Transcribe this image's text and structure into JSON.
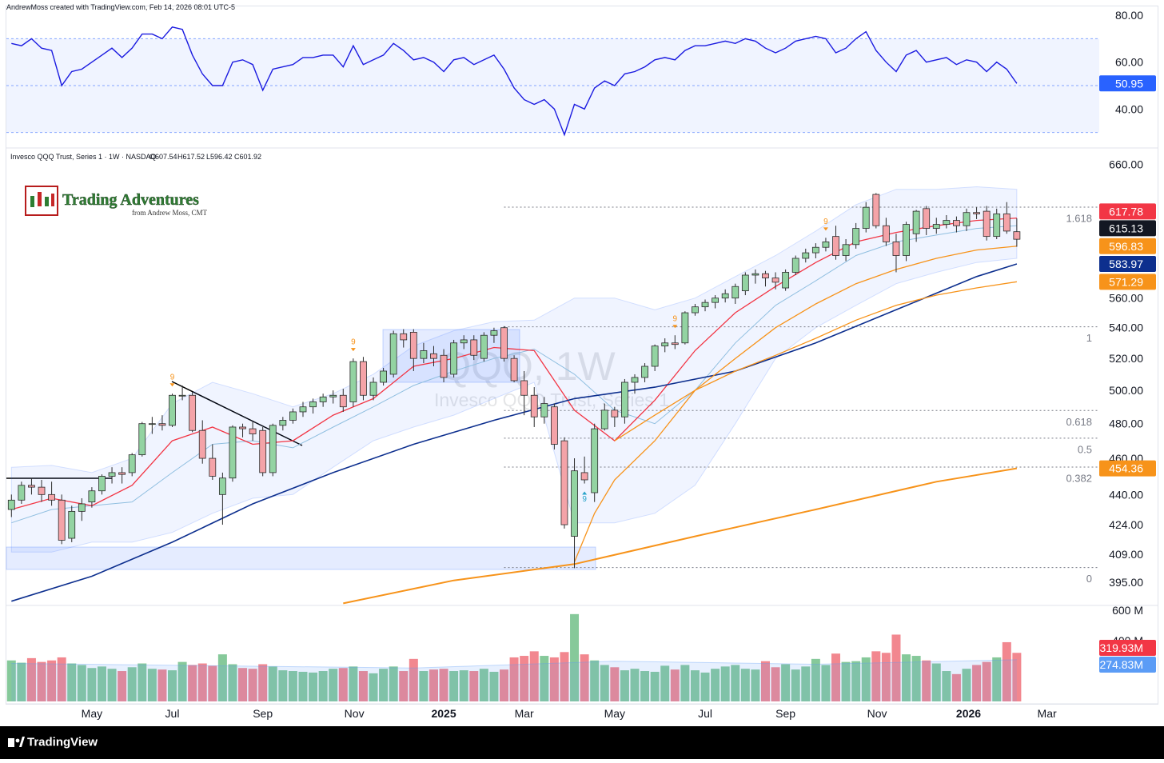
{
  "header": {
    "credit": "AndrewMoss created with TradingView.com, Feb 14, 2026 08:01 UTC-5"
  },
  "logo": {
    "title": "Trading Adventures",
    "subtitle": "from Andrew Moss, CMT"
  },
  "footer": {
    "brand": "TradingView"
  },
  "chart_data": [
    {
      "type": "line",
      "color": "#1a1ae0",
      "xlim": [
        -0.5,
        108.2
      ],
      "ylim": [
        25.1,
        83.8
      ],
      "yticks": [
        {
          "value": 40,
          "label": "40.00"
        },
        {
          "value": 60,
          "label": "60.00"
        },
        {
          "value": 80,
          "label": "80.00"
        }
      ],
      "band_levels": [
        30,
        50,
        70
      ],
      "band_color": "#2962ff",
      "label_color": "#2962ff",
      "values": [
        68,
        67,
        70,
        66,
        65,
        50,
        56,
        57,
        60,
        63,
        66,
        62,
        66,
        72,
        72,
        70,
        75,
        74,
        63,
        55,
        50,
        50,
        60,
        61,
        59,
        48,
        57,
        58,
        59,
        62,
        62,
        63,
        63,
        58,
        67,
        59,
        61,
        63,
        68,
        65,
        61,
        62,
        60,
        56,
        61,
        62,
        59,
        61,
        63,
        57,
        49,
        44,
        42,
        44,
        40,
        29,
        42,
        40,
        49,
        52,
        50,
        55,
        56,
        58,
        61,
        62,
        61,
        65,
        67,
        67,
        68,
        69,
        68,
        70,
        69,
        66,
        64,
        66,
        69,
        70,
        71,
        70,
        64,
        66,
        70,
        73,
        65,
        60,
        56,
        63,
        65,
        60,
        61,
        62,
        59,
        61,
        60,
        56,
        60,
        57,
        50.95
      ]
    },
    {
      "type": "candlestick",
      "log": true,
      "xlim": [
        -0.5,
        108.2
      ],
      "ylim": [
        384,
        670
      ],
      "legend_title": "Invesco QQQ Trust, Series 1 · 1W · NASDAQ",
      "ohlc_legend": [
        "O607.54",
        "H617.52",
        "L596.42",
        "C601.92"
      ],
      "watermark": {
        "symbol": "QQQ, 1W",
        "description": "Invesco QQQ Trust, Series 1"
      },
      "yticks": [
        {
          "value": 395,
          "label": "395.00"
        },
        {
          "value": 409,
          "label": "409.00"
        },
        {
          "value": 424,
          "label": "424.00"
        },
        {
          "value": 440,
          "label": "440.00"
        },
        {
          "value": 460,
          "label": "460.00"
        },
        {
          "value": 480,
          "label": "480.00"
        },
        {
          "value": 500,
          "label": "500.00"
        },
        {
          "value": 520,
          "label": "520.00"
        },
        {
          "value": 540,
          "label": "540.00"
        },
        {
          "value": 560,
          "label": "560.00"
        },
        {
          "value": 660,
          "label": "660.00"
        }
      ],
      "up_color": "#93d3a2",
      "down_color": "#f4a3a8",
      "outline_color": "#2b2b2b",
      "open": [
        432,
        437,
        445,
        444,
        440,
        437,
        417,
        431,
        436,
        442,
        450,
        452,
        452,
        462,
        480,
        480,
        479,
        497,
        497,
        476,
        460,
        440,
        449,
        478,
        477,
        476,
        452,
        479,
        482,
        487,
        490,
        493,
        496,
        497,
        493,
        518,
        497,
        505,
        510,
        536,
        537,
        520,
        523,
        522,
        510,
        530,
        532,
        520,
        535,
        540,
        520,
        506,
        497,
        484,
        490,
        470,
        418,
        452,
        441,
        477,
        488,
        484,
        505,
        508,
        515,
        528,
        530,
        530,
        550,
        554,
        557,
        560,
        560,
        565,
        576,
        577,
        574,
        567,
        578,
        588,
        592,
        596,
        604,
        590,
        598,
        610,
        636,
        612,
        600,
        590,
        606,
        625,
        610,
        613,
        616,
        612,
        622,
        623,
        604,
        621,
        607.54
      ],
      "high": [
        440,
        447,
        449,
        448,
        447,
        440,
        434,
        438,
        444,
        451,
        455,
        455,
        463,
        481,
        484,
        485,
        498,
        503,
        499,
        482,
        468,
        452,
        479,
        480,
        481,
        478,
        480,
        484,
        489,
        493,
        495,
        498,
        500,
        501,
        520,
        521,
        508,
        514,
        538,
        539,
        539,
        530,
        528,
        526,
        532,
        535,
        535,
        537,
        540,
        541,
        522,
        512,
        502,
        496,
        492,
        472,
        460,
        461,
        480,
        492,
        490,
        507,
        510,
        517,
        529,
        533,
        535,
        551,
        556,
        559,
        562,
        566,
        570,
        578,
        580,
        579,
        578,
        580,
        590,
        595,
        599,
        603,
        612,
        602,
        614,
        630,
        637,
        618,
        606,
        615,
        624,
        627,
        618,
        620,
        619,
        625,
        626,
        627,
        625,
        630,
        617.52
      ],
      "low": [
        428,
        435,
        440,
        436,
        434,
        414,
        415,
        426,
        433,
        440,
        446,
        446,
        450,
        461,
        474,
        476,
        478,
        494,
        475,
        457,
        448,
        424,
        447,
        472,
        470,
        450,
        450,
        476,
        480,
        484,
        486,
        490,
        492,
        487,
        490,
        494,
        494,
        503,
        508,
        527,
        512,
        517,
        515,
        505,
        508,
        526,
        519,
        518,
        530,
        518,
        505,
        485,
        478,
        480,
        465,
        422,
        402,
        446,
        436,
        476,
        478,
        480,
        498,
        505,
        512,
        524,
        526,
        529,
        548,
        551,
        553,
        557,
        556,
        562,
        570,
        568,
        566,
        565,
        576,
        585,
        588,
        593,
        587,
        586,
        595,
        607,
        610,
        597,
        578,
        586,
        600,
        605,
        606,
        610,
        607,
        608,
        617,
        601,
        602,
        606,
        596.42
      ],
      "close": [
        437,
        445,
        444,
        440,
        437,
        416,
        431,
        435,
        442,
        450,
        452,
        451,
        462,
        480,
        480,
        479,
        497,
        497,
        476,
        460,
        450,
        449,
        478,
        477,
        474,
        452,
        479,
        482,
        487,
        490,
        493,
        496,
        497,
        490,
        518,
        497,
        505,
        512,
        536,
        532,
        520,
        525,
        520,
        508,
        530,
        532,
        522,
        535,
        538,
        520,
        506,
        497,
        484,
        492,
        468,
        424,
        453,
        448,
        477,
        488,
        484,
        505,
        508,
        515,
        528,
        530,
        529,
        550,
        554,
        557,
        560,
        563,
        568,
        576,
        577,
        574,
        571,
        578,
        588,
        592,
        596,
        600,
        590,
        598,
        610,
        626,
        612,
        600,
        590,
        613,
        623,
        610,
        613,
        616,
        612,
        622,
        621,
        604,
        621,
        608,
        601.92
      ],
      "bollinger": {
        "color": "#2962ff",
        "x": [
          0,
          4,
          8,
          12,
          16,
          20,
          24,
          28,
          32,
          36,
          40,
          44,
          48,
          52,
          56,
          60,
          64,
          68,
          72,
          76,
          80,
          84,
          88,
          92,
          96,
          100
        ],
        "upper": [
          455,
          456,
          452,
          460,
          492,
          505,
          498,
          490,
          498,
          510,
          528,
          538,
          544,
          545,
          560,
          560,
          552,
          560,
          575,
          590,
          608,
          628,
          640,
          640,
          642,
          640
        ],
        "lower": [
          410,
          410,
          415,
          415,
          420,
          430,
          438,
          440,
          455,
          470,
          478,
          485,
          495,
          505,
          425,
          425,
          430,
          445,
          480,
          520,
          540,
          555,
          570,
          578,
          585,
          588
        ]
      },
      "lines": [
        {
          "color": "#90bfe0",
          "width": 1,
          "axis_label": false,
          "x": [
            0,
            4,
            8,
            12,
            16,
            20,
            24,
            28,
            32,
            36,
            40,
            44,
            48,
            52,
            56,
            60,
            64,
            68,
            72,
            76,
            80,
            84,
            88,
            92,
            96,
            100
          ],
          "values": [
            425,
            432,
            434,
            436,
            452,
            468,
            470,
            466,
            478,
            490,
            503,
            512,
            520,
            526,
            510,
            488,
            480,
            500,
            530,
            555,
            572,
            590,
            600,
            605,
            610,
            612
          ]
        },
        {
          "color": "#f23645",
          "width": 1.3,
          "axis_label": true,
          "x": [
            0,
            4,
            8,
            12,
            16,
            20,
            24,
            28,
            32,
            36,
            40,
            44,
            48,
            52,
            56,
            60,
            64,
            68,
            72,
            76,
            80,
            84,
            88,
            92,
            96,
            100
          ],
          "values": [
            432,
            438,
            434,
            445,
            470,
            478,
            468,
            470,
            485,
            495,
            515,
            520,
            527,
            525,
            488,
            470,
            494,
            525,
            550,
            568,
            585,
            600,
            607,
            612,
            616,
            617.78
          ]
        },
        {
          "color": "#0d2f8e",
          "width": 1.6,
          "axis_label": true,
          "x": [
            0,
            8,
            16,
            24,
            32,
            40,
            48,
            56,
            64,
            72,
            80,
            88,
            96,
            100
          ],
          "values": [
            386,
            398,
            415,
            435,
            452,
            468,
            482,
            495,
            502,
            512,
            530,
            552,
            575,
            583.97
          ]
        },
        {
          "color": "#f7931a",
          "width": 1.3,
          "axis_label": true,
          "x": [
            56,
            58,
            60,
            64,
            68,
            72,
            76,
            80,
            84,
            88,
            92,
            96,
            100
          ],
          "values": [
            405,
            430,
            448,
            470,
            500,
            520,
            540,
            556,
            570,
            580,
            588,
            594,
            596.83
          ]
        },
        {
          "color": "#f7931a",
          "width": 1.3,
          "axis_label": true,
          "x": [
            60,
            64,
            68,
            72,
            76,
            80,
            84,
            88,
            92,
            96,
            100
          ],
          "values": [
            470,
            485,
            500,
            512,
            522,
            533,
            545,
            555,
            562,
            567,
            571.29
          ]
        },
        {
          "color": "#f7931a",
          "width": 2,
          "axis_label": true,
          "x": [
            33,
            44,
            56,
            68,
            80,
            92,
            100
          ],
          "values": [
            385,
            396,
            404,
            418,
            432,
            447,
            454.36
          ]
        }
      ],
      "extra_price_labels": [
        {
          "value": 615.13,
          "color": "#131722"
        }
      ],
      "fib": {
        "start_x": 49,
        "color": "#787b86",
        "levels": [
          0,
          0.382,
          0.5,
          0.618,
          1,
          1.618
        ],
        "prices": [
          402.3,
          455.1,
          471.5,
          487.8,
          540.6,
          626.1
        ]
      },
      "td_marks": [
        {
          "x": 16,
          "label": "9",
          "color": "#f7931a",
          "side": "above"
        },
        {
          "x": 34,
          "label": "9",
          "color": "#f7931a",
          "side": "above"
        },
        {
          "x": 66,
          "label": "9",
          "color": "#f7931a",
          "side": "above"
        },
        {
          "x": 81,
          "label": "9",
          "color": "#f7931a",
          "side": "above"
        },
        {
          "x": 57,
          "label": "9",
          "color": "#26a3c9",
          "side": "below"
        }
      ]
    },
    {
      "type": "bar",
      "xlim": [
        -0.5,
        108.2
      ],
      "ylim": [
        0,
        632
      ],
      "yticks": [
        {
          "value": 400,
          "label": "400 M"
        },
        {
          "value": 600,
          "label": "600 M"
        }
      ],
      "up_color": "#86c99a",
      "down_color": "#f2878f",
      "last_label": "319.93M",
      "last_color": "#f23645",
      "values": [
        270,
        255,
        285,
        260,
        270,
        290,
        250,
        240,
        220,
        230,
        215,
        200,
        225,
        250,
        215,
        210,
        205,
        260,
        240,
        250,
        235,
        310,
        245,
        220,
        215,
        245,
        230,
        205,
        200,
        195,
        190,
        200,
        215,
        220,
        230,
        200,
        185,
        215,
        230,
        200,
        280,
        200,
        210,
        215,
        200,
        205,
        200,
        215,
        195,
        210,
        290,
        300,
        330,
        300,
        290,
        325,
        575,
        310,
        270,
        240,
        225,
        205,
        215,
        200,
        195,
        235,
        210,
        240,
        205,
        190,
        215,
        230,
        240,
        215,
        210,
        265,
        225,
        245,
        210,
        230,
        280,
        240,
        315,
        260,
        265,
        290,
        330,
        320,
        440,
        310,
        300,
        270,
        250,
        200,
        180,
        215,
        240,
        260,
        290,
        390,
        319.93
      ],
      "ma": {
        "color": "#5b9cf6",
        "label": "274.83M",
        "x": [
          0,
          20,
          40,
          60,
          80,
          100
        ],
        "values": [
          250,
          235,
          220,
          265,
          245,
          274.83
        ]
      },
      "xticks": [
        {
          "value": 8,
          "label": "May"
        },
        {
          "value": 16,
          "label": "Jul"
        },
        {
          "value": 25,
          "label": "Sep"
        },
        {
          "value": 34.1,
          "label": "Nov"
        },
        {
          "value": 43,
          "label": "2025"
        },
        {
          "value": 51,
          "label": "Mar"
        },
        {
          "value": 60,
          "label": "May"
        },
        {
          "value": 69,
          "label": "Jul"
        },
        {
          "value": 77,
          "label": "Sep"
        },
        {
          "value": 86.1,
          "label": "Nov"
        },
        {
          "value": 95.2,
          "label": "2026"
        },
        {
          "value": 103,
          "label": "Mar"
        }
      ]
    }
  ]
}
